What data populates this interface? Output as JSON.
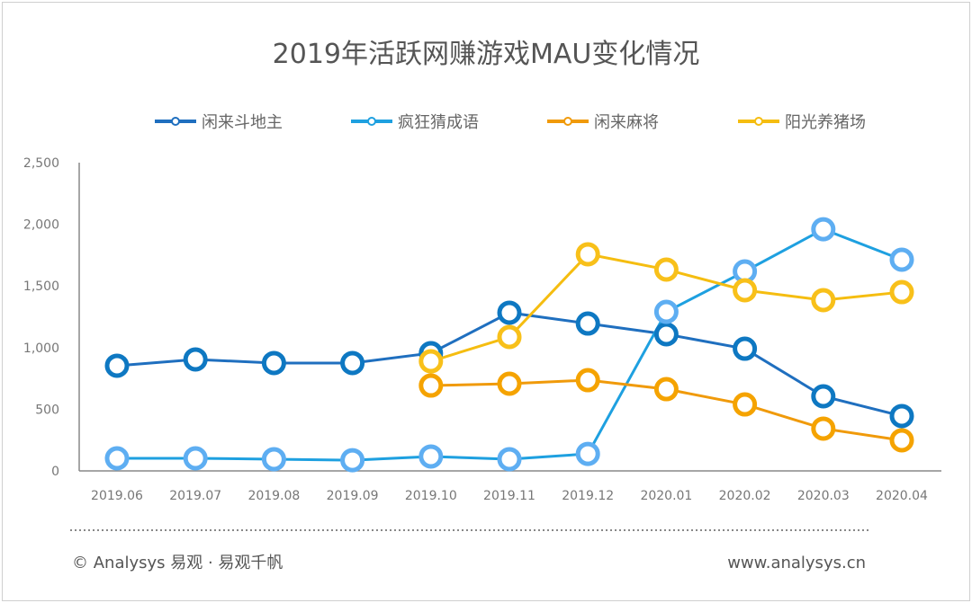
{
  "chart_data": {
    "type": "line",
    "title": "2019年活跃网赚游戏MAU变化情况",
    "categories": [
      "2019.06",
      "2019.07",
      "2019.08",
      "2019.09",
      "2019.10",
      "2019.11",
      "2019.12",
      "2020.01",
      "2020.02",
      "2020.03",
      "2020.04"
    ],
    "ylim": [
      0,
      2500
    ],
    "yticks": [
      "0",
      "500",
      "1,000",
      "1,500",
      "2,000",
      "2,500"
    ],
    "ytick_values": [
      0,
      500,
      1000,
      1500,
      2000,
      2500
    ],
    "grid": false,
    "legend_position": "top",
    "series": [
      {
        "name": "闲来斗地主",
        "color": "#1f6fbf",
        "marker": "#0e78c2",
        "values": [
          853,
          904,
          875,
          875,
          955,
          1283,
          1195,
          1108,
          991,
          605,
          445
        ]
      },
      {
        "name": "疯狂猜成语",
        "color": "#1ea0e0",
        "marker": "#5eaef2",
        "values": [
          102,
          102,
          95,
          87,
          117,
          95,
          138,
          1290,
          1618,
          1960,
          1713
        ]
      },
      {
        "name": "闲来麻将",
        "color": "#f09a0a",
        "marker": "#f5a300",
        "values": [
          null,
          null,
          null,
          null,
          692,
          707,
          736,
          663,
          539,
          343,
          248
        ]
      },
      {
        "name": "阳光养猪场",
        "color": "#f5bd10",
        "marker": "#f8c01a",
        "values": [
          null,
          null,
          null,
          null,
          889,
          1086,
          1757,
          1633,
          1465,
          1385,
          1450
        ]
      }
    ]
  },
  "footer": {
    "copyright": "© Analysys 易观 · 易观千帆",
    "website": "www.analysys.cn"
  }
}
